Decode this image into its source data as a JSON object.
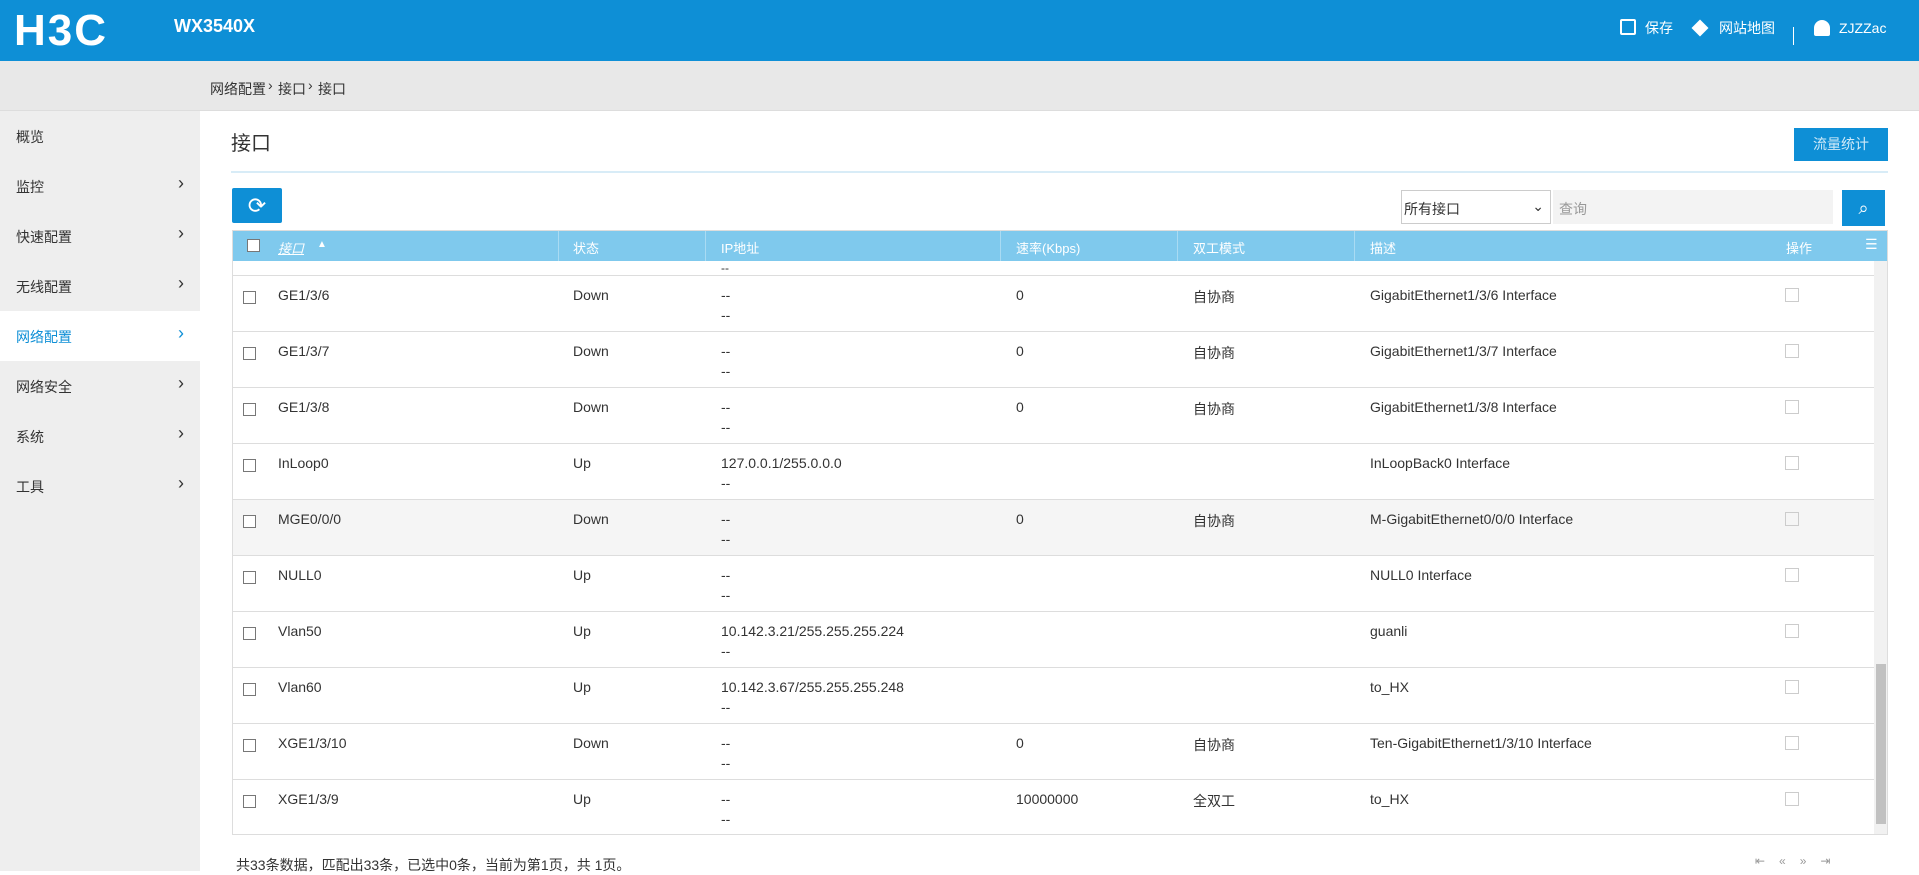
{
  "header": {
    "logo": "H3C",
    "model": "WX3540X",
    "actions": [
      "保存",
      "网站地图",
      "ZJZZac"
    ]
  },
  "breadcrumb": [
    "网络配置",
    "接口",
    "接口"
  ],
  "sidebar": {
    "items": [
      {
        "label": "概览",
        "arrow": false
      },
      {
        "label": "监控",
        "arrow": true
      },
      {
        "label": "快速配置",
        "arrow": true
      },
      {
        "label": "无线配置",
        "arrow": true
      },
      {
        "label": "网络配置",
        "arrow": true,
        "active": true
      },
      {
        "label": "网络安全",
        "arrow": true
      },
      {
        "label": "系统",
        "arrow": true
      },
      {
        "label": "工具",
        "arrow": true
      }
    ]
  },
  "page": {
    "title": "接口",
    "stats_button": "流量统计",
    "filter_select": "所有接口",
    "search_placeholder": "查询"
  },
  "table": {
    "columns": [
      "接口",
      "状态",
      "IP地址",
      "速率(Kbps)",
      "双工模式",
      "描述",
      "操作"
    ],
    "top_fragment": "--",
    "rows": [
      {
        "name": "GE1/3/6",
        "status": "Down",
        "ip": [
          "--",
          "--"
        ],
        "rate": "0",
        "duplex": "自协商",
        "desc": "GigabitEthernet1/3/6 Interface"
      },
      {
        "name": "GE1/3/7",
        "status": "Down",
        "ip": [
          "--",
          "--"
        ],
        "rate": "0",
        "duplex": "自协商",
        "desc": "GigabitEthernet1/3/7 Interface"
      },
      {
        "name": "GE1/3/8",
        "status": "Down",
        "ip": [
          "--",
          "--"
        ],
        "rate": "0",
        "duplex": "自协商",
        "desc": "GigabitEthernet1/3/8 Interface"
      },
      {
        "name": "InLoop0",
        "status": "Up",
        "ip": [
          "127.0.0.1/255.0.0.0",
          "--"
        ],
        "rate": "",
        "duplex": "",
        "desc": "InLoopBack0 Interface"
      },
      {
        "name": "MGE0/0/0",
        "status": "Down",
        "ip": [
          "--",
          "--"
        ],
        "rate": "0",
        "duplex": "自协商",
        "desc": "M-GigabitEthernet0/0/0 Interface"
      },
      {
        "name": "NULL0",
        "status": "Up",
        "ip": [
          "--",
          "--"
        ],
        "rate": "",
        "duplex": "",
        "desc": "NULL0 Interface"
      },
      {
        "name": "Vlan50",
        "status": "Up",
        "ip": [
          "10.142.3.21/255.255.255.224",
          "--"
        ],
        "rate": "",
        "duplex": "",
        "desc": "guanli"
      },
      {
        "name": "Vlan60",
        "status": "Up",
        "ip": [
          "10.142.3.67/255.255.255.248",
          "--"
        ],
        "rate": "",
        "duplex": "",
        "desc": "to_HX"
      },
      {
        "name": "XGE1/3/10",
        "status": "Down",
        "ip": [
          "--",
          "--"
        ],
        "rate": "0",
        "duplex": "自协商",
        "desc": "Ten-GigabitEthernet1/3/10 Interface"
      },
      {
        "name": "XGE1/3/9",
        "status": "Up",
        "ip": [
          "--",
          "--"
        ],
        "rate": "10000000",
        "duplex": "全双工",
        "desc": "to_HX"
      }
    ]
  },
  "footer": "共33条数据，匹配出33条，已选中0条，当前为第1页，共 1页。"
}
